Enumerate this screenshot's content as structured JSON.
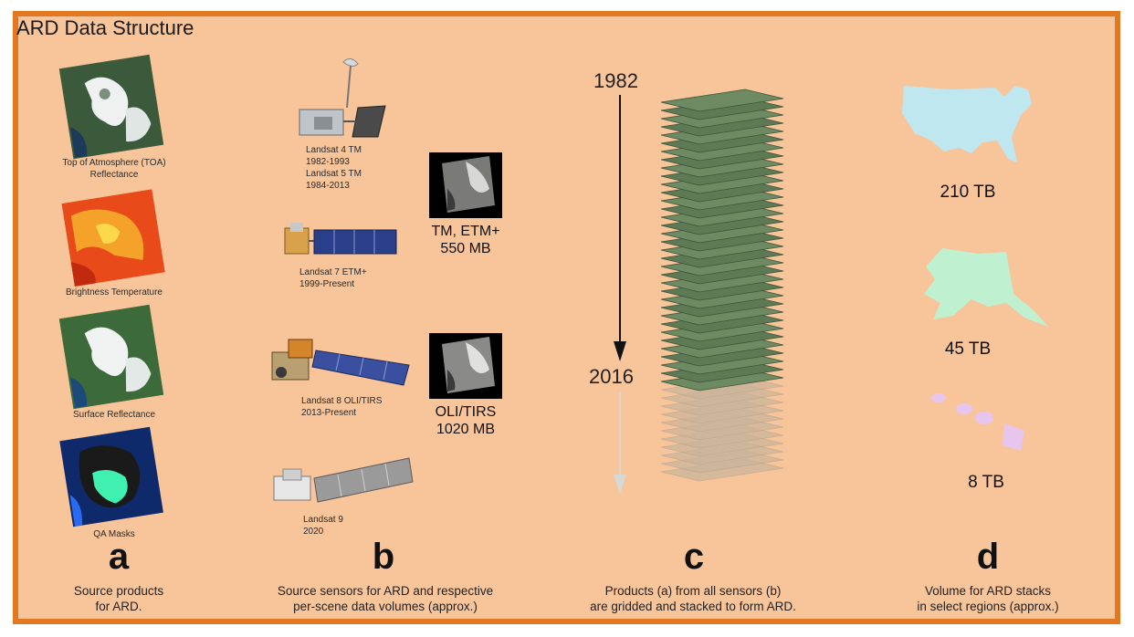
{
  "title": "ARD Data Structure",
  "column_a": {
    "products": [
      {
        "label": "Top of Atmosphere (TOA) Reflectance"
      },
      {
        "label": "Brightness Temperature"
      },
      {
        "label": "Surface Reflectance"
      },
      {
        "label": "QA Masks"
      }
    ],
    "letter": "a",
    "caption_line1": "Source products",
    "caption_line2": "for ARD."
  },
  "column_b": {
    "satellites": [
      {
        "line1": "Landsat 4 TM",
        "line2": "1982-1993",
        "line3": "Landsat 5 TM",
        "line4": "1984-2013"
      },
      {
        "line1": "Landsat 7 ETM+",
        "line2": "1999-Present"
      },
      {
        "line1": "Landsat 8 OLI/TIRS",
        "line2": "2013-Present"
      },
      {
        "line1": "Landsat 9",
        "line2": "2020"
      }
    ],
    "volumes": [
      {
        "line1": "TM, ETM+",
        "line2": "550 MB"
      },
      {
        "line1": "OLI/TIRS",
        "line2": "1020 MB"
      }
    ],
    "letter": "b",
    "caption_line1": "Source sensors for ARD and respective",
    "caption_line2": "per-scene data volumes (approx.)"
  },
  "column_c": {
    "year_start": "1982",
    "year_end": "2016",
    "letter": "c",
    "caption_line1": "Products (a) from all sensors (b)",
    "caption_line2": "are gridded and stacked to form ARD."
  },
  "column_d": {
    "regions": [
      {
        "volume": "210 TB",
        "color": "#bfe7ef"
      },
      {
        "volume": "45 TB",
        "color": "#bff0d0"
      },
      {
        "volume": "8 TB",
        "color": "#e6c6ee"
      }
    ],
    "letter": "d",
    "caption_line1": "Volume for ARD stacks",
    "caption_line2": "in select regions (approx.)"
  }
}
